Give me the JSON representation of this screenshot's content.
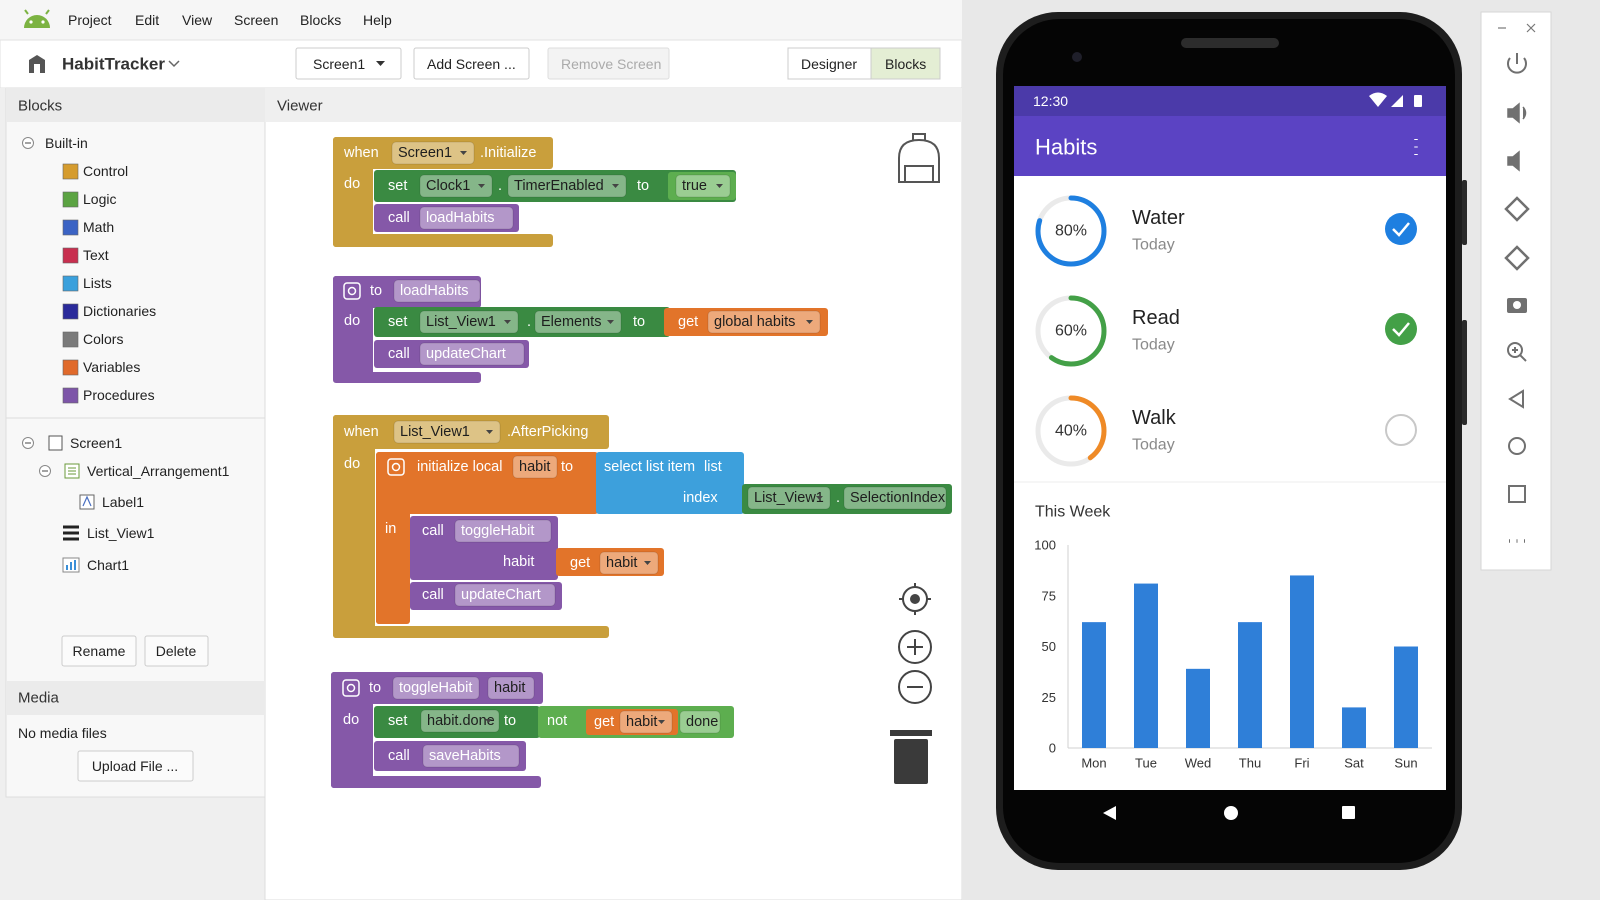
{
  "menu": [
    "Project",
    "Edit",
    "View",
    "Screen",
    "Blocks",
    "Help"
  ],
  "toolbar": {
    "project": "HabitTracker",
    "screen": "Screen1",
    "add_screen": "Add Screen ...",
    "remove_screen": "Remove Screen",
    "designer": "Designer",
    "blocks": "Blocks"
  },
  "blocks_panel": {
    "title": "Blocks",
    "builtin": "Built-in",
    "categories": [
      "Control",
      "Logic",
      "Math",
      "Text",
      "Lists",
      "Dictionaries",
      "Colors",
      "Variables",
      "Procedures"
    ],
    "components": [
      "Screen1",
      "Vertical_Arrangement1",
      "Label1",
      "List_View1",
      "Chart1"
    ],
    "rename": "Rename",
    "delete": "Delete"
  },
  "media": {
    "title": "Media",
    "empty": "No media files",
    "upload": "Upload File ..."
  },
  "viewer": {
    "title": "Viewer",
    "blocks": [
      [
        "when",
        "Screen1",
        ".Initialize",
        "do",
        "set",
        "Clock1",
        ".",
        "TimerEnabled",
        "to",
        "true",
        "call",
        "loadHabits"
      ],
      [
        "to",
        "loadHabits",
        "do",
        "set",
        "List_View1",
        ".",
        "Elements",
        "to",
        "get",
        "global habits",
        "call",
        "updateChart"
      ],
      [
        "when",
        "List_View1",
        ".AfterPicking",
        "do",
        "initialize local",
        "habit",
        "to",
        "select list item",
        "list",
        "index",
        "List_View1",
        ".",
        "SelectionIndex",
        "in",
        "call",
        "toggleHabit",
        "habit",
        "get",
        "habit",
        "call",
        "updateChart"
      ],
      [
        "to",
        "toggleHabit",
        "habit",
        "do",
        "set",
        "habit.done",
        "to",
        "not",
        "get",
        "habit",
        "done",
        "call",
        "saveHabits"
      ]
    ]
  },
  "phone": {
    "time": "12:30",
    "app_title": "Habits",
    "habits": [
      {
        "progress": 80,
        "progress_label": "80%",
        "name": "Water",
        "subtitle": "Today",
        "done": true,
        "color": "#1e7fe0"
      },
      {
        "progress": 60,
        "progress_label": "60%",
        "name": "Read",
        "subtitle": "Today",
        "done": true,
        "color": "#43a047"
      },
      {
        "progress": 40,
        "progress_label": "40%",
        "name": "Walk",
        "subtitle": "Today",
        "done": false,
        "color": "#ef8a26"
      }
    ]
  },
  "chart_data": {
    "type": "bar",
    "title": "This Week",
    "categories": [
      "Mon",
      "Tue",
      "Wed",
      "Thu",
      "Fri",
      "Sat",
      "Sun"
    ],
    "values": [
      62,
      81,
      39,
      62,
      85,
      20,
      50
    ],
    "color": "#2f7fd8",
    "ylim": [
      0,
      100
    ],
    "yticks": [
      0,
      25,
      50,
      75,
      100
    ],
    "grid": false
  }
}
